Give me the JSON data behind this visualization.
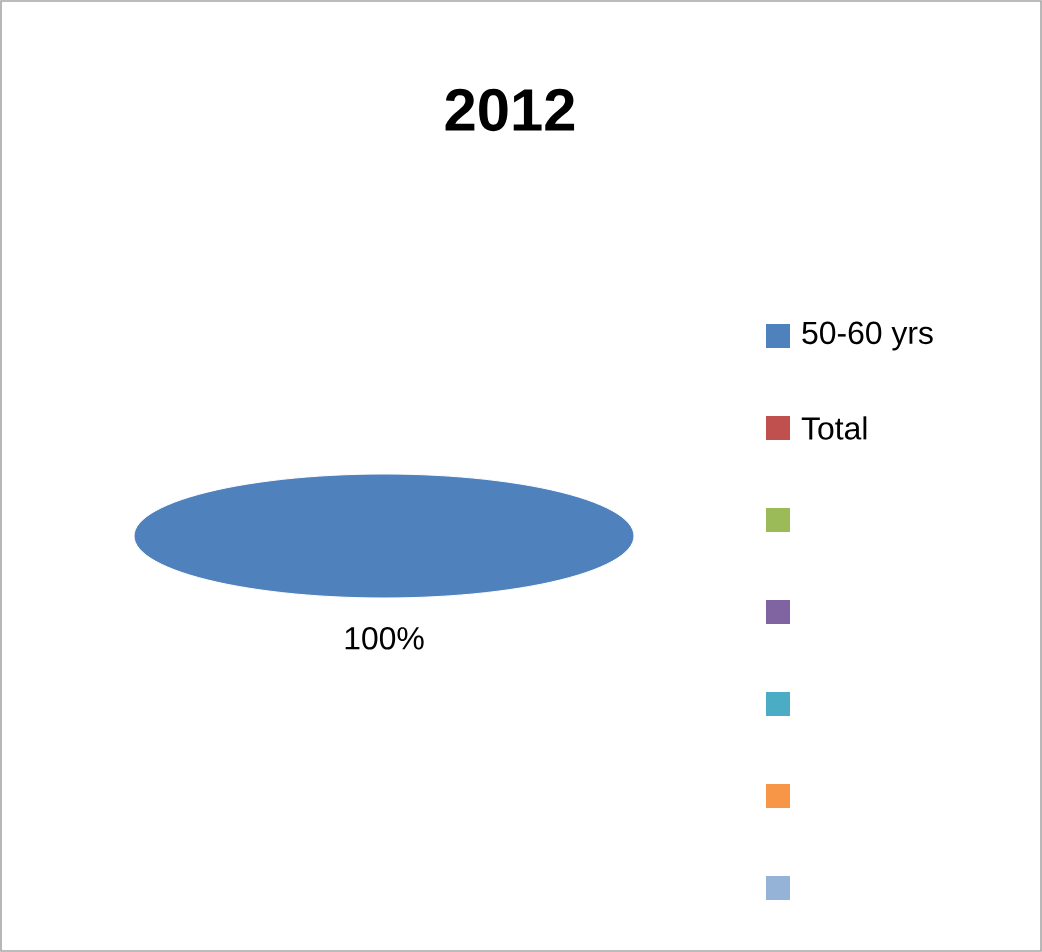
{
  "chart_data": {
    "type": "pie",
    "title": "2012",
    "categories": [
      "50-60 yrs",
      "Total",
      null,
      null,
      null,
      null,
      null
    ],
    "values": [
      100,
      0,
      0,
      0,
      0,
      0,
      0
    ],
    "colors": [
      "#4f81bd",
      "#c0504d",
      "#9bbb59",
      "#8064a2",
      "#4bacc6",
      "#f79646",
      "#95b3d7"
    ],
    "value_labels": [
      "100%",
      null,
      null,
      null,
      null,
      null,
      null
    ],
    "legend": "right"
  }
}
